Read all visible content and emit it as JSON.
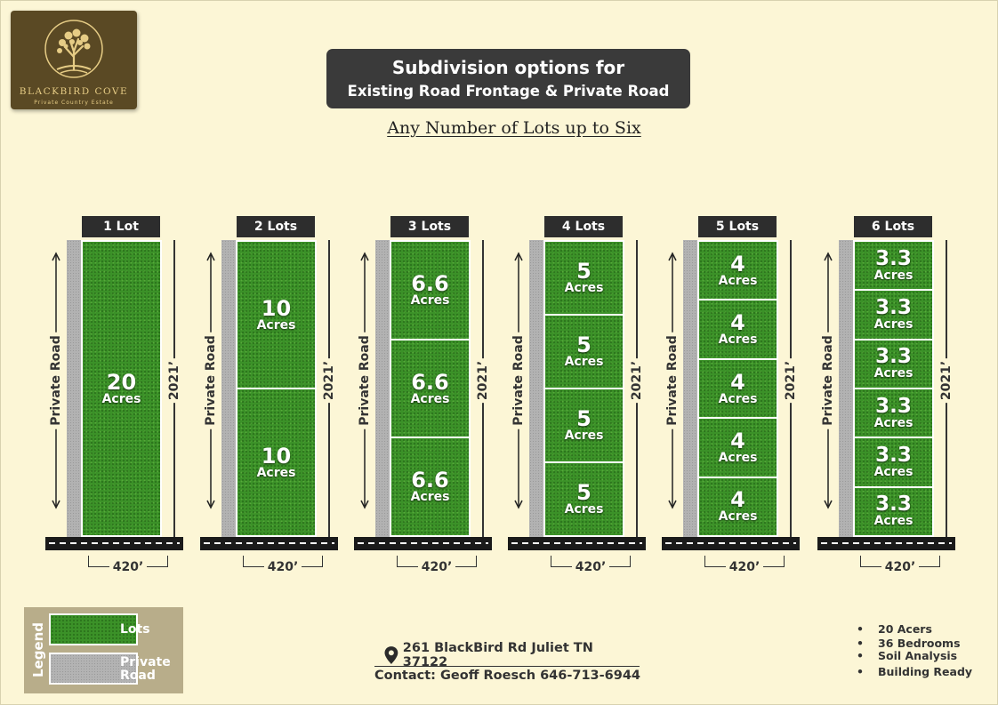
{
  "logo": {
    "brand": "BLACKBIRD COVE",
    "tagline": "Private Country Estate",
    "icon": "tree-icon"
  },
  "header": {
    "title_line1": "Subdivision options for",
    "title_line2": "Existing Road Frontage & Private Road",
    "subtitle": "Any Number of Lots up to Six"
  },
  "plats": [
    {
      "label": "1 Lot",
      "lots": [
        {
          "value": "20",
          "unit": "Acres"
        }
      ]
    },
    {
      "label": "2 Lots",
      "lots": [
        {
          "value": "10",
          "unit": "Acres"
        },
        {
          "value": "10",
          "unit": "Acres"
        }
      ]
    },
    {
      "label": "3 Lots",
      "lots": [
        {
          "value": "6.6",
          "unit": "Acres"
        },
        {
          "value": "6.6",
          "unit": "Acres"
        },
        {
          "value": "6.6",
          "unit": "Acres"
        }
      ]
    },
    {
      "label": "4 Lots",
      "lots": [
        {
          "value": "5",
          "unit": "Acres"
        },
        {
          "value": "5",
          "unit": "Acres"
        },
        {
          "value": "5",
          "unit": "Acres"
        },
        {
          "value": "5",
          "unit": "Acres"
        }
      ]
    },
    {
      "label": "5 Lots",
      "lots": [
        {
          "value": "4",
          "unit": "Acres"
        },
        {
          "value": "4",
          "unit": "Acres"
        },
        {
          "value": "4",
          "unit": "Acres"
        },
        {
          "value": "4",
          "unit": "Acres"
        },
        {
          "value": "4",
          "unit": "Acres"
        }
      ]
    },
    {
      "label": "6 Lots",
      "lots": [
        {
          "value": "3.3",
          "unit": "Acres"
        },
        {
          "value": "3.3",
          "unit": "Acres"
        },
        {
          "value": "3.3",
          "unit": "Acres"
        },
        {
          "value": "3.3",
          "unit": "Acres"
        },
        {
          "value": "3.3",
          "unit": "Acres"
        },
        {
          "value": "3.3",
          "unit": "Acres"
        }
      ]
    }
  ],
  "labels": {
    "private_road": "Private Road",
    "depth": "2021’",
    "frontage": "420’"
  },
  "legend": {
    "title": "Legend",
    "lots": "Lots",
    "private_road_line1": "Private",
    "private_road_line2": "Road"
  },
  "contact": {
    "icon": "map-pin-icon",
    "address": "261 BlackBird Rd Juliet TN 37122",
    "phone": "Contact: Geoff Roesch 646-713-6944"
  },
  "features": [
    "20 Acers",
    "36 Bedrooms",
    "Soil Analysis",
    "Building Ready"
  ],
  "colors": {
    "background": "#fcf6d6",
    "lot_green": "#3b9128",
    "road_gray": "#b2b2b2",
    "title_bg": "#3a3a3a",
    "logo_bg": "#5a4924",
    "logo_gold": "#e6cc85"
  }
}
